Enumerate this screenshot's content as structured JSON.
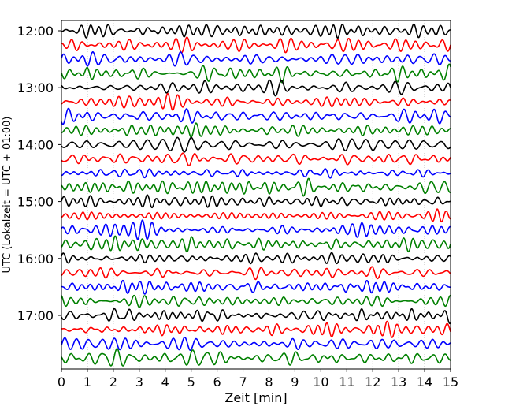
{
  "chart_data": {
    "type": "line",
    "title": "",
    "xlabel": "Zeit  [min]",
    "ylabel": "UTC (Lokalzeit = UTC + 01:00)",
    "xlim": [
      0,
      15
    ],
    "x_ticks": [
      "0",
      "1",
      "2",
      "3",
      "4",
      "5",
      "6",
      "7",
      "8",
      "9",
      "10",
      "11",
      "12",
      "13",
      "14",
      "15"
    ],
    "y_ticks": [
      "12:00",
      "13:00",
      "14:00",
      "15:00",
      "16:00",
      "17:00"
    ],
    "trace_start_times": [
      "12:00",
      "12:15",
      "12:30",
      "12:45",
      "13:00",
      "13:15",
      "13:30",
      "13:45",
      "14:00",
      "14:15",
      "14:30",
      "14:45",
      "15:00",
      "15:15",
      "15:30",
      "15:45",
      "16:00",
      "16:15",
      "16:30",
      "16:45",
      "17:00",
      "17:15",
      "17:30",
      "17:45"
    ],
    "trace_colors": [
      "#000000",
      "#ff0000",
      "#0000ff",
      "#008000"
    ],
    "grid": "vertical dotted at each minute",
    "legend": "none"
  }
}
